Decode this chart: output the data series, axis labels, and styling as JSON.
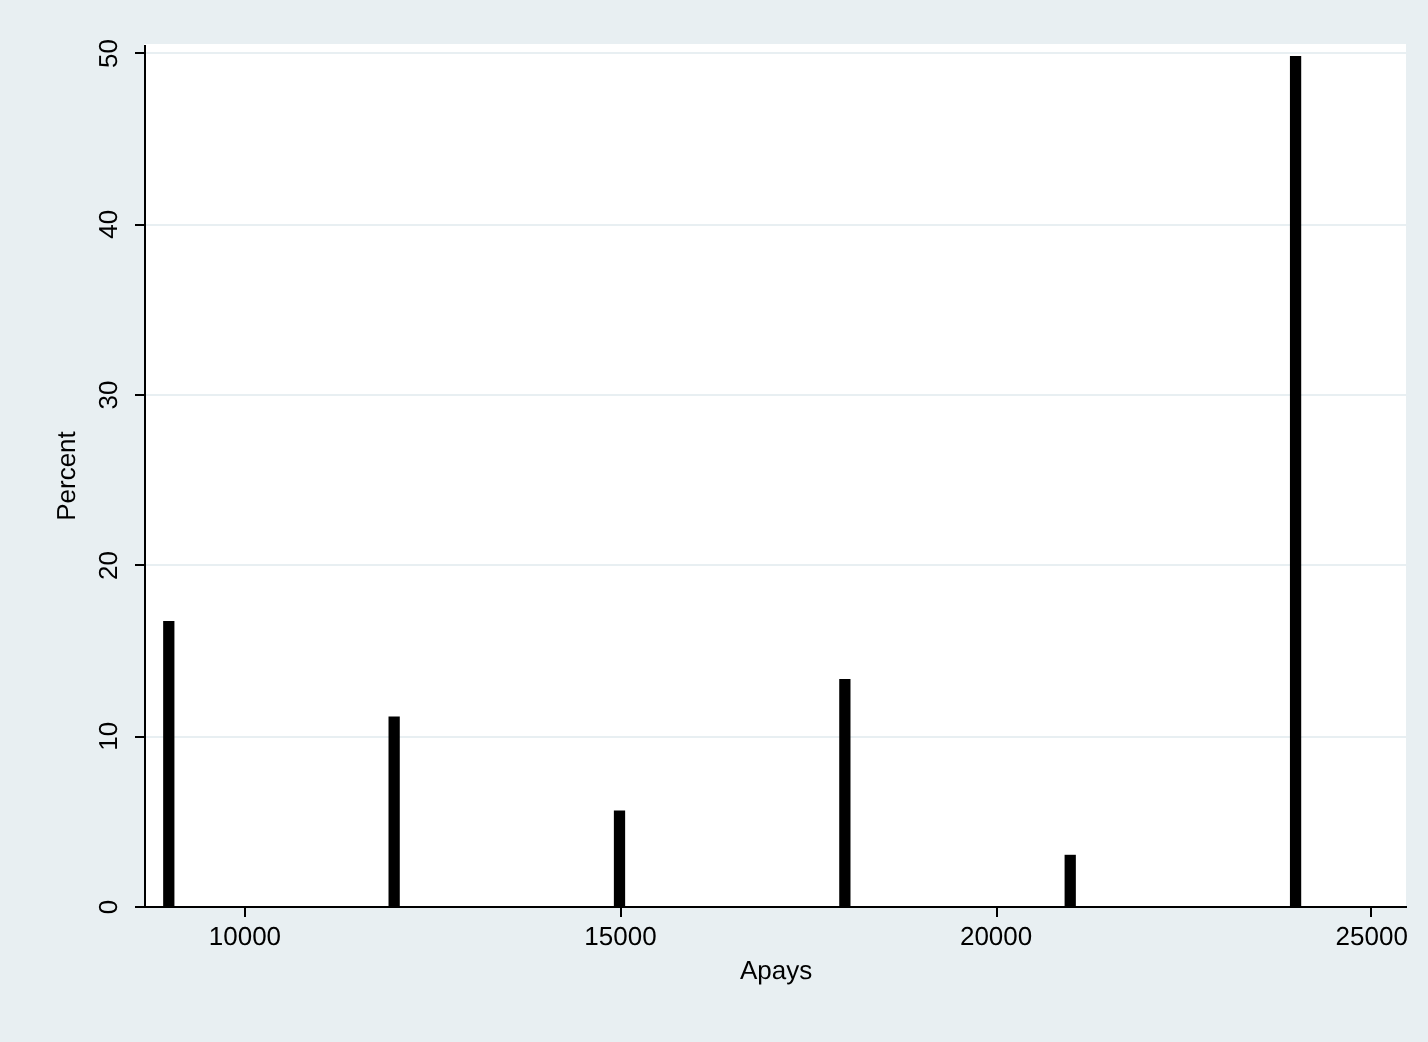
{
  "chart_data": {
    "type": "histogram",
    "xlabel": "Apays",
    "ylabel": "Percent",
    "bins": [
      8925,
      9075,
      11925,
      12075,
      14925,
      15075,
      17925,
      18075,
      20925,
      21075,
      23925,
      24075
    ],
    "values": [
      16.7,
      0,
      11.1,
      0,
      5.6,
      0,
      13.3,
      0,
      3.0,
      0,
      49.8
    ],
    "color": "#000000",
    "xlim": [
      8670,
      25470
    ],
    "xticks": [
      10000,
      15000,
      20000,
      25000
    ],
    "ylim": [
      0,
      50.5
    ],
    "yticks": [
      0,
      10,
      20,
      30,
      40,
      50
    ],
    "grid": "y"
  }
}
